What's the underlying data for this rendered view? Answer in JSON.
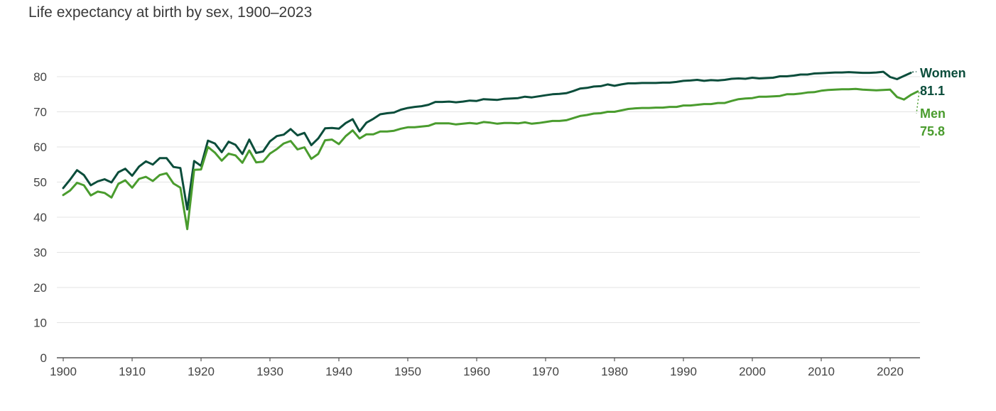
{
  "chart_data": {
    "type": "line",
    "title": "Life expectancy at birth by sex, 1900–2023",
    "xlabel": "",
    "ylabel": "",
    "xlim": [
      1900,
      2024
    ],
    "ylim": [
      0,
      80
    ],
    "grid": true,
    "legend": "end-of-line labels",
    "x_ticks": [
      1900,
      1910,
      1920,
      1930,
      1940,
      1950,
      1960,
      1970,
      1980,
      1990,
      2000,
      2010,
      2020
    ],
    "y_ticks": [
      0,
      10,
      20,
      30,
      40,
      50,
      60,
      70,
      80
    ],
    "colors": {
      "women": "#0b4d3b",
      "men": "#4a9c2e"
    },
    "x_start": 1900,
    "series": [
      {
        "name": "Women",
        "end_value": "81.1",
        "values": [
          48.3,
          50.7,
          53.4,
          52.0,
          49.1,
          50.2,
          50.8,
          49.9,
          52.8,
          53.8,
          51.8,
          54.4,
          55.9,
          55.0,
          56.8,
          56.8,
          54.3,
          54.0,
          42.2,
          56.0,
          54.6,
          61.8,
          61.0,
          58.5,
          61.5,
          60.6,
          58.0,
          62.1,
          58.3,
          58.7,
          61.6,
          63.1,
          63.5,
          65.1,
          63.3,
          64.0,
          60.5,
          62.4,
          65.3,
          65.4,
          65.2,
          66.8,
          67.9,
          64.4,
          66.9,
          68.0,
          69.3,
          69.6,
          69.8,
          70.6,
          71.1,
          71.4,
          71.6,
          72.0,
          72.8,
          72.8,
          72.9,
          72.7,
          72.9,
          73.2,
          73.1,
          73.6,
          73.5,
          73.4,
          73.7,
          73.8,
          73.9,
          74.3,
          74.1,
          74.4,
          74.7,
          75.0,
          75.1,
          75.3,
          75.9,
          76.6,
          76.8,
          77.2,
          77.3,
          77.8,
          77.4,
          77.8,
          78.1,
          78.1,
          78.2,
          78.2,
          78.2,
          78.3,
          78.3,
          78.5,
          78.8,
          78.9,
          79.1,
          78.8,
          79.0,
          78.9,
          79.1,
          79.4,
          79.5,
          79.4,
          79.7,
          79.5,
          79.6,
          79.7,
          80.1,
          80.1,
          80.3,
          80.6,
          80.6,
          80.9,
          81.0,
          81.1,
          81.2,
          81.2,
          81.3,
          81.2,
          81.1,
          81.1,
          81.2,
          81.4,
          79.9,
          79.3,
          80.2,
          81.1
        ]
      },
      {
        "name": "Men",
        "end_value": "75.8",
        "values": [
          46.3,
          47.6,
          49.8,
          49.1,
          46.2,
          47.3,
          46.9,
          45.6,
          49.5,
          50.5,
          48.4,
          50.9,
          51.5,
          50.3,
          52.0,
          52.5,
          49.6,
          48.4,
          36.6,
          53.5,
          53.6,
          60.0,
          58.4,
          56.1,
          58.1,
          57.6,
          55.5,
          59.0,
          55.6,
          55.8,
          58.1,
          59.4,
          61.0,
          61.7,
          59.3,
          59.9,
          56.6,
          58.0,
          61.9,
          62.1,
          60.8,
          63.1,
          64.7,
          62.4,
          63.6,
          63.6,
          64.4,
          64.4,
          64.6,
          65.2,
          65.6,
          65.6,
          65.8,
          66.0,
          66.7,
          66.7,
          66.7,
          66.4,
          66.6,
          66.8,
          66.6,
          67.1,
          66.9,
          66.6,
          66.8,
          66.8,
          66.7,
          67.0,
          66.6,
          66.8,
          67.1,
          67.4,
          67.4,
          67.6,
          68.2,
          68.8,
          69.1,
          69.5,
          69.6,
          70.0,
          70.0,
          70.4,
          70.8,
          71.0,
          71.1,
          71.1,
          71.2,
          71.2,
          71.4,
          71.4,
          71.8,
          71.8,
          72.0,
          72.2,
          72.2,
          72.5,
          72.5,
          73.1,
          73.6,
          73.8,
          73.9,
          74.3,
          74.3,
          74.4,
          74.5,
          75.0,
          75.0,
          75.2,
          75.5,
          75.6,
          76.0,
          76.2,
          76.3,
          76.4,
          76.4,
          76.5,
          76.3,
          76.2,
          76.1,
          76.2,
          76.3,
          74.2,
          73.5,
          74.8,
          75.8
        ]
      }
    ]
  }
}
